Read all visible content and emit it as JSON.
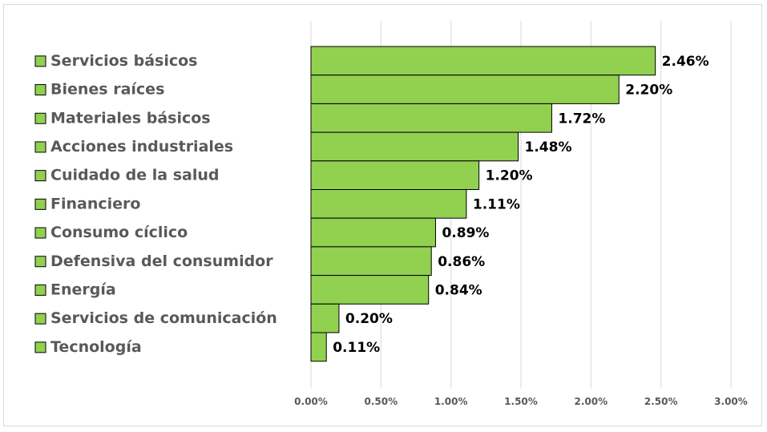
{
  "chart_data": {
    "type": "bar",
    "orientation": "horizontal",
    "categories": [
      "Servicios básicos",
      "Bienes raíces",
      "Materiales básicos",
      "Acciones industriales",
      "Cuidado de la salud",
      "Financiero",
      "Consumo cíclico",
      "Defensiva del consumidor",
      "Energía",
      "Servicios de comunicación",
      "Tecnología"
    ],
    "values": [
      2.46,
      2.2,
      1.72,
      1.48,
      1.2,
      1.11,
      0.89,
      0.86,
      0.84,
      0.2,
      0.11
    ],
    "value_labels": [
      "2.46%",
      "2.20%",
      "1.72%",
      "1.48%",
      "1.20%",
      "1.11%",
      "0.89%",
      "0.86%",
      "0.84%",
      "0.20%",
      "0.11%"
    ],
    "xlim": [
      0,
      3
    ],
    "x_ticks": [
      0,
      0.5,
      1,
      1.5,
      2,
      2.5,
      3
    ],
    "x_tick_labels": [
      "0.00%",
      "0.50%",
      "1.00%",
      "1.50%",
      "2.00%",
      "2.50%",
      "3.00%"
    ],
    "grid": "vertical",
    "legend_position": "left",
    "title": "",
    "xlabel": "",
    "ylabel": "",
    "colors": {
      "bar": "#92d050",
      "bar_edge": "#000000",
      "grid": "#d9d9d9",
      "label": "#595959"
    }
  }
}
